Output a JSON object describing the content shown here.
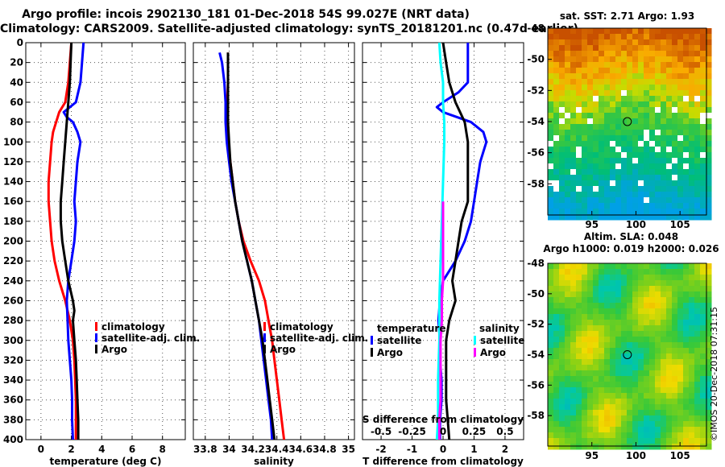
{
  "header": {
    "line1": "Argo profile: incois 2902130_181 01-Dec-2018 54S 99.027E (NRT data)",
    "line2": "Climatology: CARS2009. Satellite-adjusted climatology: synTS_20181201.nc (0.47d earlier)"
  },
  "colors": {
    "climatology": "#ff0000",
    "satellite": "#0000ff",
    "argo": "#000000",
    "sat_salinity": "#00ffff",
    "argo_salinity": "#ff00ff"
  },
  "chart_data": [
    {
      "type": "line",
      "title": "",
      "xlabel": "temperature (deg C)",
      "ylabel": "",
      "xlim": [
        -1,
        9.5
      ],
      "ylim": [
        400,
        0
      ],
      "xticks": [
        0,
        2,
        4,
        6,
        8
      ],
      "xtick_labels": [
        "0",
        "2",
        "4",
        "6",
        "8"
      ],
      "yticks": [
        0,
        20,
        40,
        60,
        80,
        100,
        120,
        140,
        160,
        180,
        200,
        220,
        240,
        260,
        280,
        300,
        320,
        340,
        360,
        380,
        400
      ],
      "legend": [
        "climatology",
        "satellite-adj. clim.",
        "Argo"
      ],
      "legend_position": "lower-right",
      "series": [
        {
          "name": "climatology",
          "color": "#ff0000",
          "depth": [
            0,
            20,
            40,
            60,
            70,
            80,
            90,
            100,
            120,
            140,
            160,
            180,
            200,
            220,
            240,
            260,
            280,
            300,
            320,
            340,
            360,
            380,
            400
          ],
          "values": [
            2.0,
            1.9,
            1.8,
            1.6,
            1.2,
            1.0,
            0.8,
            0.7,
            0.6,
            0.5,
            0.5,
            0.6,
            0.7,
            0.9,
            1.2,
            1.6,
            1.9,
            2.1,
            2.2,
            2.25,
            2.3,
            2.3,
            2.3
          ]
        },
        {
          "name": "satellite-adj. clim.",
          "color": "#0000ff",
          "depth": [
            0,
            20,
            40,
            60,
            65,
            70,
            75,
            80,
            90,
            100,
            120,
            140,
            160,
            180,
            200,
            220,
            240,
            260,
            280,
            300,
            320,
            340,
            360,
            380,
            400
          ],
          "values": [
            2.8,
            2.7,
            2.6,
            2.3,
            1.9,
            1.5,
            1.7,
            2.1,
            2.4,
            2.6,
            2.4,
            2.3,
            2.2,
            2.3,
            2.2,
            2.0,
            1.8,
            1.7,
            1.75,
            1.8,
            1.9,
            2.0,
            2.05,
            2.05,
            2.1
          ]
        },
        {
          "name": "Argo",
          "color": "#000000",
          "depth": [
            0,
            20,
            40,
            60,
            80,
            100,
            120,
            140,
            160,
            180,
            200,
            220,
            240,
            260,
            270,
            280,
            300,
            320,
            340,
            360,
            380,
            400
          ],
          "values": [
            2.0,
            1.95,
            1.9,
            1.8,
            1.7,
            1.6,
            1.5,
            1.4,
            1.3,
            1.3,
            1.4,
            1.6,
            1.8,
            2.1,
            2.2,
            2.1,
            2.2,
            2.3,
            2.35,
            2.4,
            2.45,
            2.45
          ]
        }
      ]
    },
    {
      "type": "line",
      "title": "",
      "xlabel": "salinity",
      "ylabel": "",
      "xlim": [
        33.7,
        35.05
      ],
      "ylim": [
        400,
        0
      ],
      "xticks": [
        33.8,
        34,
        34.2,
        34.4,
        34.6,
        34.8,
        35
      ],
      "xtick_labels": [
        "33.8",
        "34",
        "34.2",
        "34.4",
        "34.6",
        "34.8",
        "35"
      ],
      "legend": [
        "climatology",
        "satellite-adj. clim.",
        "Argo"
      ],
      "legend_position": "lower-right",
      "series": [
        {
          "name": "climatology",
          "color": "#ff0000",
          "depth": [
            10,
            40,
            80,
            100,
            120,
            140,
            160,
            180,
            200,
            220,
            240,
            260,
            280,
            300,
            320,
            340,
            360,
            380,
            400
          ],
          "values": [
            33.99,
            33.99,
            33.98,
            33.99,
            34.01,
            34.03,
            34.05,
            34.08,
            34.12,
            34.18,
            34.25,
            34.3,
            34.33,
            34.36,
            34.38,
            34.4,
            34.42,
            34.44,
            34.46
          ]
        },
        {
          "name": "satellite-adj. clim.",
          "color": "#0000ff",
          "depth": [
            10,
            20,
            40,
            60,
            80,
            100,
            120,
            140,
            160,
            180,
            200,
            220,
            240,
            260,
            280,
            300,
            320,
            340,
            360,
            380,
            400
          ],
          "values": [
            33.92,
            33.94,
            33.96,
            33.97,
            33.97,
            33.98,
            34.0,
            34.02,
            34.05,
            34.08,
            34.11,
            34.15,
            34.19,
            34.22,
            34.25,
            34.27,
            34.29,
            34.31,
            34.33,
            34.35,
            34.36
          ]
        },
        {
          "name": "Argo",
          "color": "#000000",
          "depth": [
            10,
            40,
            60,
            80,
            100,
            120,
            140,
            160,
            180,
            200,
            220,
            240,
            260,
            280,
            300,
            320,
            340,
            360,
            380,
            400
          ],
          "values": [
            33.99,
            33.99,
            33.99,
            33.99,
            34.0,
            34.01,
            34.03,
            34.05,
            34.08,
            34.11,
            34.15,
            34.19,
            34.22,
            34.25,
            34.28,
            34.3,
            34.32,
            34.34,
            34.36,
            34.38
          ]
        }
      ]
    },
    {
      "type": "line",
      "title": "",
      "xlabel": "T difference from climatology",
      "ylabel": "",
      "xlim": [
        -2.6,
        2.6
      ],
      "ylim": [
        400,
        0
      ],
      "xticks": [
        -2,
        -1,
        0,
        1,
        2
      ],
      "xtick_labels": [
        "-2",
        "-1",
        "0",
        "1",
        "2"
      ],
      "secondary_xlabel": "S difference from climatology",
      "secondary_xlim": [
        -0.65,
        0.65
      ],
      "secondary_xtick_labels": [
        "-0.5",
        "-0.25",
        "0",
        "0.25",
        "0.5"
      ],
      "legend_groups": [
        {
          "title": "temperature",
          "entries": [
            "satellite",
            "Argo"
          ]
        },
        {
          "title": "salinity",
          "entries": [
            "satellite",
            "Argo"
          ]
        }
      ],
      "series": [
        {
          "name": "temperature satellite",
          "color": "#0000ff",
          "depth": [
            0,
            20,
            40,
            50,
            60,
            65,
            70,
            80,
            90,
            100,
            110,
            120,
            140,
            160,
            180,
            200,
            220,
            240,
            260,
            280,
            300,
            320,
            340,
            360,
            380,
            400
          ],
          "values": [
            0.8,
            0.8,
            0.8,
            0.5,
            0.0,
            -0.2,
            0.0,
            0.9,
            1.3,
            1.4,
            1.3,
            1.2,
            1.1,
            1.0,
            0.9,
            0.7,
            0.4,
            0.0,
            -0.1,
            -0.15,
            -0.1,
            -0.1,
            -0.05,
            -0.05,
            -0.1,
            -0.1
          ]
        },
        {
          "name": "temperature Argo",
          "color": "#000000",
          "depth": [
            0,
            20,
            40,
            60,
            80,
            100,
            120,
            140,
            160,
            180,
            200,
            220,
            240,
            260,
            270,
            280,
            300,
            320,
            340,
            360,
            380,
            400
          ],
          "values": [
            0.0,
            0.1,
            0.2,
            0.4,
            0.7,
            0.8,
            0.8,
            0.8,
            0.8,
            0.6,
            0.5,
            0.4,
            0.3,
            0.4,
            0.3,
            0.2,
            0.1,
            0.1,
            0.1,
            0.1,
            0.15,
            0.2
          ]
        },
        {
          "name": "salinity satellite",
          "color": "#00ffff",
          "depth": [
            0,
            20,
            40,
            60,
            80,
            100,
            140,
            180,
            220,
            260,
            300,
            340,
            380,
            400
          ],
          "values": [
            -0.03,
            -0.02,
            0.0,
            0.0,
            0.01,
            0.01,
            0.0,
            -0.01,
            -0.02,
            -0.03,
            -0.03,
            -0.04,
            -0.04,
            -0.05
          ]
        },
        {
          "name": "salinity Argo",
          "color": "#ff00ff",
          "depth": [
            160,
            180,
            200,
            220,
            240,
            260,
            280,
            300,
            320,
            340,
            360,
            380,
            400
          ],
          "values": [
            0.0,
            0.0,
            0.0,
            0.0,
            0.0,
            -0.01,
            -0.01,
            -0.02,
            -0.02,
            -0.02,
            -0.02,
            -0.03,
            -0.03
          ]
        }
      ]
    },
    {
      "type": "heatmap",
      "title": "sat. SST: 2.71 Argo: 1.93",
      "xlim": [
        90,
        108
      ],
      "ylim": [
        -60,
        -48
      ],
      "xticks": [
        95,
        100,
        105
      ],
      "yticks": [
        -48,
        -50,
        -52,
        -54,
        -56,
        -58
      ],
      "argo_position": [
        99.027,
        -54
      ]
    },
    {
      "type": "heatmap",
      "title": "Altim. SLA: 0.048",
      "subtitle": "Argo h1000: 0.019 h2000: 0.026",
      "xlim": [
        90,
        108
      ],
      "ylim": [
        -60,
        -48
      ],
      "xticks": [
        95,
        100,
        105
      ],
      "yticks": [
        -48,
        -50,
        -52,
        -54,
        -56,
        -58
      ],
      "argo_position": [
        99.027,
        -54
      ]
    }
  ],
  "credit": "©IMOS 20-Dec-2018 07:31:15"
}
